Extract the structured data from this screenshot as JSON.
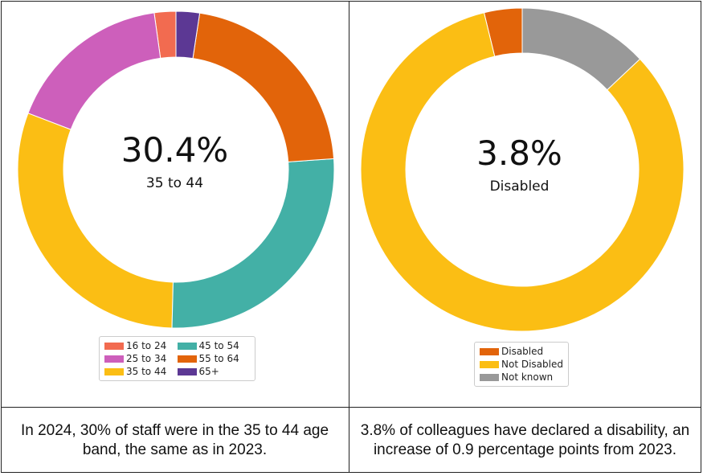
{
  "chart_data": [
    {
      "type": "pie",
      "donut": true,
      "center_value": "30.4%",
      "center_label": "35 to 44",
      "categories": [
        "16 to 24",
        "25 to 34",
        "35 to 44",
        "45 to 54",
        "55 to 64",
        "65+"
      ],
      "values": [
        2.2,
        17.0,
        30.4,
        26.5,
        21.5,
        2.4
      ],
      "colors": [
        "#f26b50",
        "#cd5fbb",
        "#fbbe14",
        "#43b0a6",
        "#e2640a",
        "#5c3894"
      ],
      "direction": "counterclockwise-from-top",
      "legend": "bottom",
      "caption": "In 2024, 30% of staff were in the 35 to 44 age band, the same as in 2023."
    },
    {
      "type": "pie",
      "donut": true,
      "center_value": "3.8%",
      "center_label": "Disabled",
      "categories": [
        "Disabled",
        "Not Disabled",
        "Not known"
      ],
      "values": [
        3.8,
        83.2,
        13.0
      ],
      "colors": [
        "#e2640a",
        "#fbbe14",
        "#999999"
      ],
      "direction": "counterclockwise-from-top",
      "legend": "bottom",
      "caption": "3.8% of colleagues have declared a disability, an increase of 0.9 percentage points from 2023."
    }
  ]
}
